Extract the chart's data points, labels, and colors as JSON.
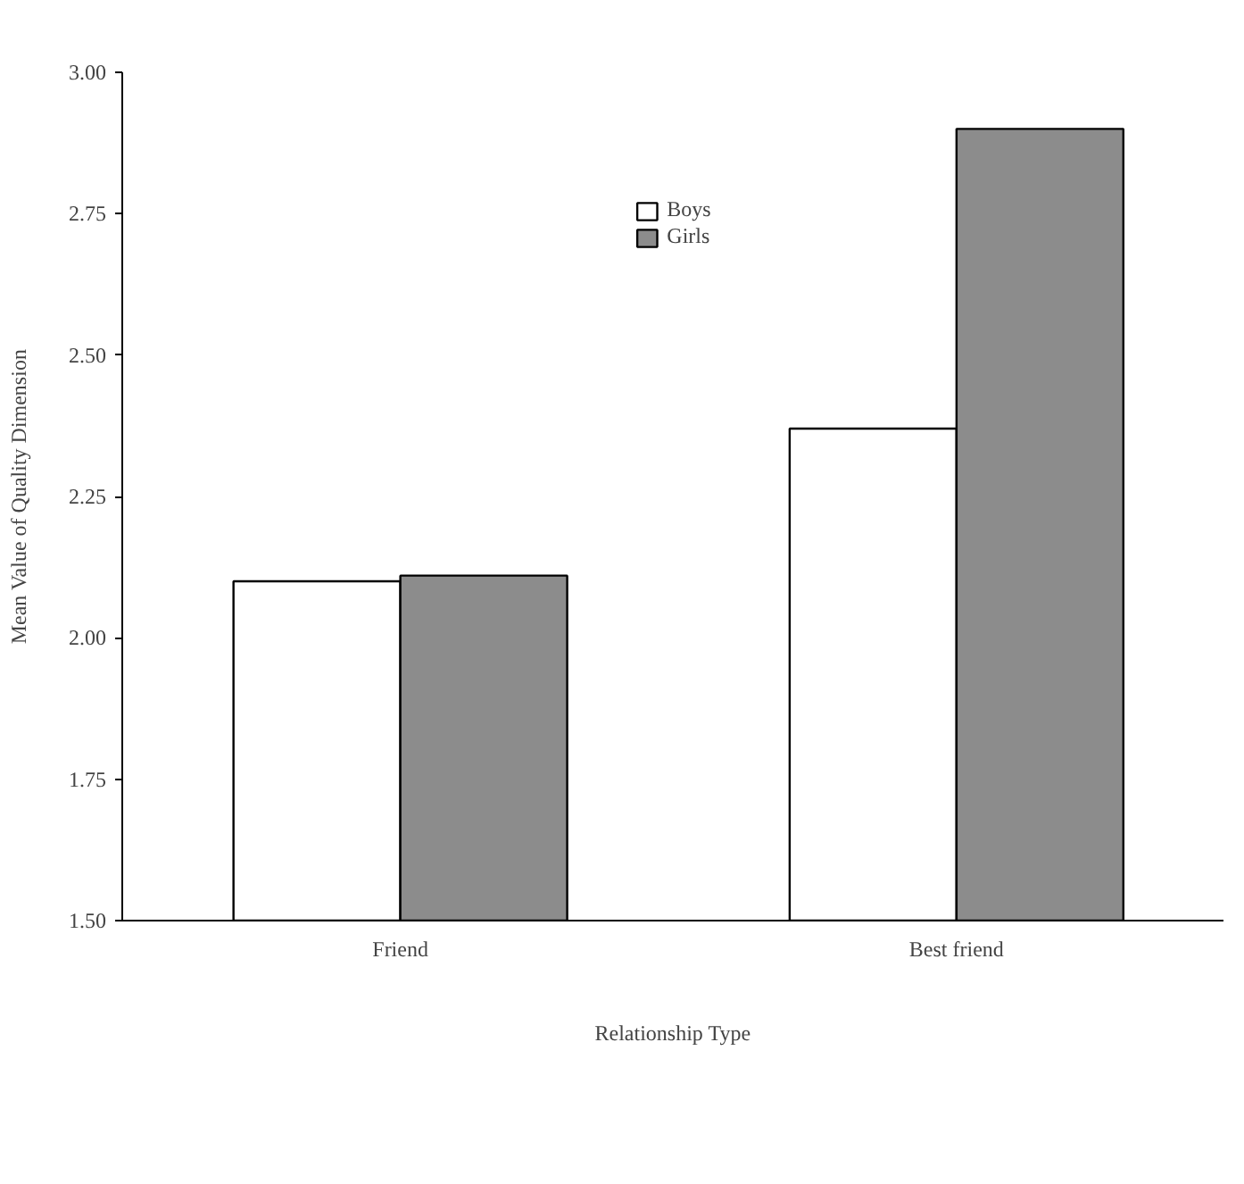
{
  "chart_data": {
    "type": "bar",
    "xlabel": "Relationship Type",
    "ylabel": "Mean Value of Quality Dimension",
    "categories": [
      "Friend",
      "Best friend"
    ],
    "series": [
      {
        "name": "Boys",
        "color": "#ffffff",
        "values": [
          2.1,
          2.37
        ]
      },
      {
        "name": "Girls",
        "color": "#8c8c8c",
        "values": [
          2.11,
          2.9
        ]
      }
    ],
    "ylim": [
      1.5,
      3.0
    ],
    "yticks": [
      {
        "value": 1.5,
        "label": "1.50"
      },
      {
        "value": 1.75,
        "label": "1.75"
      },
      {
        "value": 2.0,
        "label": "2.00"
      },
      {
        "value": 2.25,
        "label": "2.25"
      },
      {
        "value": 2.5,
        "label": "2.50"
      },
      {
        "value": 2.75,
        "label": "2.75"
      },
      {
        "value": 3.0,
        "label": "3.00"
      }
    ],
    "grid": false,
    "legend": "top"
  }
}
